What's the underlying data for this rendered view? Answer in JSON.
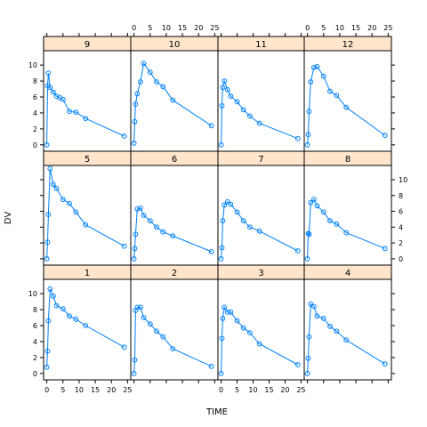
{
  "chart_data": {
    "type": "line",
    "layout": "trellis",
    "xlabel": "TIME",
    "ylabel": "DV",
    "xlim": [
      -1,
      26
    ],
    "ylim": [
      -0.8,
      11.8
    ],
    "x_ticks": [
      0,
      5,
      10,
      15,
      20,
      25
    ],
    "y_ticks": [
      0,
      2,
      4,
      6,
      8,
      10
    ],
    "grid": false,
    "legend": "none",
    "colors": {
      "strip": "#ffe5cc",
      "line": "#0080ff",
      "frame": "#000000"
    },
    "panels": [
      {
        "name": "9",
        "x": [
          0,
          0.25,
          0.5,
          1,
          2,
          3,
          4,
          5,
          7,
          9,
          12,
          24
        ],
        "y": [
          0,
          7.4,
          9.0,
          7.2,
          6.6,
          6.1,
          5.9,
          5.7,
          4.2,
          4.1,
          3.3,
          1.1
        ]
      },
      {
        "name": "10",
        "x": [
          0,
          0.25,
          0.5,
          1,
          2,
          3,
          5,
          7,
          9,
          12,
          24
        ],
        "y": [
          0.2,
          2.9,
          5.1,
          6.4,
          7.9,
          10.2,
          9.1,
          7.9,
          7.3,
          5.6,
          2.4
        ]
      },
      {
        "name": "11",
        "x": [
          0,
          0.25,
          0.5,
          1,
          2,
          3,
          5,
          7,
          9,
          12,
          24
        ],
        "y": [
          0,
          4.9,
          7.2,
          8.0,
          6.9,
          6.1,
          5.4,
          4.4,
          3.6,
          2.7,
          0.8
        ]
      },
      {
        "name": "12",
        "x": [
          0,
          0.25,
          0.5,
          1,
          2,
          3,
          5,
          7,
          9,
          12,
          24
        ],
        "y": [
          0,
          1.3,
          4.2,
          7.9,
          9.7,
          9.8,
          8.6,
          6.7,
          6.2,
          4.7,
          1.2
        ]
      },
      {
        "name": "5",
        "x": [
          0,
          0.25,
          0.5,
          1,
          2,
          3,
          5,
          7,
          9,
          12,
          24
        ],
        "y": [
          0,
          2.1,
          5.6,
          11.4,
          9.4,
          8.9,
          7.5,
          7.0,
          5.9,
          4.3,
          1.6
        ]
      },
      {
        "name": "6",
        "x": [
          0,
          0.25,
          0.5,
          1,
          2,
          3,
          5,
          7,
          9,
          12,
          24
        ],
        "y": [
          0,
          1.3,
          3.1,
          6.3,
          6.4,
          5.5,
          4.8,
          4.0,
          3.4,
          2.9,
          0.9
        ]
      },
      {
        "name": "7",
        "x": [
          0,
          0.25,
          0.5,
          1,
          2,
          3,
          5,
          7,
          9,
          12,
          24
        ],
        "y": [
          0,
          1.4,
          4.8,
          6.8,
          7.2,
          6.9,
          5.9,
          4.8,
          4.0,
          3.5,
          1.0
        ]
      },
      {
        "name": "8",
        "x": [
          0,
          0.25,
          0.5,
          1,
          2,
          3,
          5,
          7,
          9,
          12,
          24
        ],
        "y": [
          0,
          3.2,
          3.1,
          7.1,
          7.5,
          6.7,
          5.9,
          4.8,
          4.4,
          3.3,
          1.3
        ]
      },
      {
        "name": "1",
        "x": [
          0,
          0.25,
          0.5,
          1,
          2,
          3,
          5,
          7,
          9,
          12,
          24
        ],
        "y": [
          0.8,
          2.8,
          6.6,
          10.6,
          9.7,
          8.5,
          8.1,
          7.2,
          6.8,
          6.0,
          3.3
        ]
      },
      {
        "name": "2",
        "x": [
          0,
          0.25,
          0.5,
          1,
          2,
          3,
          5,
          7,
          9,
          12,
          24
        ],
        "y": [
          0,
          1.7,
          7.9,
          8.3,
          8.3,
          7.0,
          6.2,
          5.3,
          4.6,
          3.1,
          0.9
        ]
      },
      {
        "name": "3",
        "x": [
          0,
          0.25,
          0.5,
          1,
          2,
          3,
          5,
          7,
          9,
          12,
          24
        ],
        "y": [
          0,
          4.4,
          6.9,
          8.3,
          7.7,
          7.7,
          6.6,
          5.7,
          5.1,
          3.7,
          1.1
        ]
      },
      {
        "name": "4",
        "x": [
          0,
          0.25,
          0.5,
          1,
          2,
          3,
          5,
          7,
          9,
          12,
          24
        ],
        "y": [
          0,
          1.9,
          4.6,
          8.7,
          8.4,
          7.2,
          6.9,
          5.9,
          5.3,
          4.2,
          1.2
        ]
      }
    ]
  }
}
